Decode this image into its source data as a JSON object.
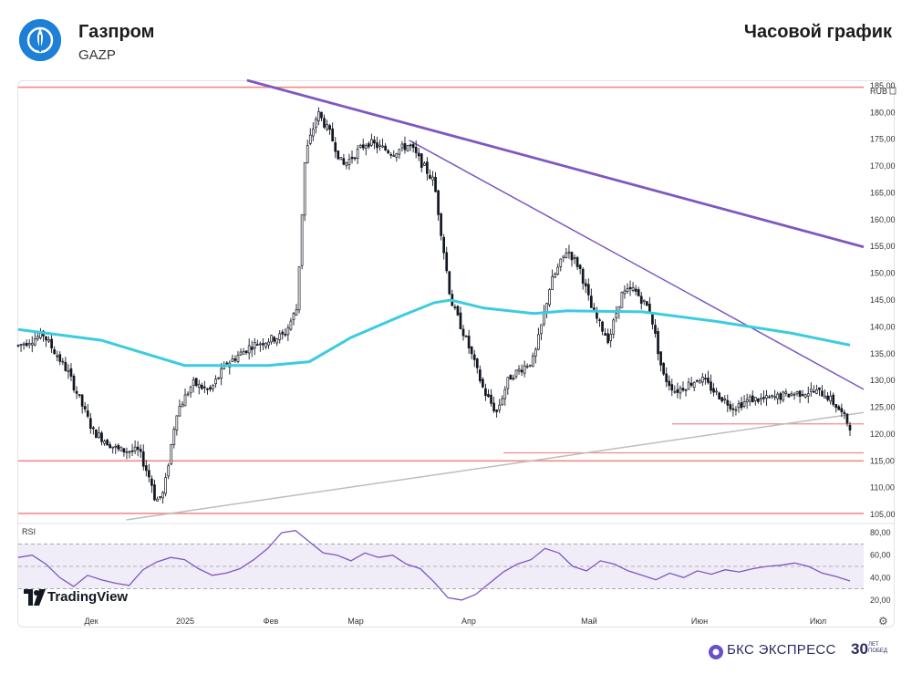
{
  "header": {
    "company": "Газпром",
    "ticker": "GAZP",
    "chart_title": "Часовой график"
  },
  "brand": {
    "name": "БКС ЭКСПРЕСС",
    "anniversary_num": "30",
    "anniversary_text": "ЛЕТ ПОБЕД"
  },
  "watermark": "TradingView",
  "colors": {
    "candle": "#131722",
    "ma_line": "#3ccbe0",
    "trend_line": "#7e57c2",
    "level_line": "#f28b8b",
    "support_line": "#bdbdbd",
    "rsi_line": "#7e57c2",
    "rsi_band": "#f0ecf8"
  },
  "chart_data": {
    "type": "candlestick",
    "currency": "RUB",
    "xlabels": [
      "Дек",
      "2025",
      "Фев",
      "Мар",
      "Апр",
      "Май",
      "Июн",
      "Июл"
    ],
    "y_ticks": [
      "185,00",
      "180,00",
      "175,00",
      "170,00",
      "165,00",
      "160,00",
      "155,00",
      "150,00",
      "145,00",
      "140,00",
      "135,00",
      "130,00",
      "125,00",
      "120,00",
      "115,00",
      "110,00",
      "105,00"
    ],
    "ylim": [
      104,
      186
    ],
    "horizontal_levels": [
      184.7,
      115.0,
      105.2,
      116.5,
      121.9
    ],
    "price_path": [
      [
        0,
        136.5
      ],
      [
        0.03,
        138.6
      ],
      [
        0.06,
        131.5
      ],
      [
        0.09,
        120.5
      ],
      [
        0.12,
        117.0
      ],
      [
        0.145,
        116.8
      ],
      [
        0.16,
        111.0
      ],
      [
        0.165,
        107.5
      ],
      [
        0.175,
        109.0
      ],
      [
        0.19,
        124.0
      ],
      [
        0.21,
        129.5
      ],
      [
        0.23,
        128.0
      ],
      [
        0.25,
        133.0
      ],
      [
        0.28,
        136.5
      ],
      [
        0.32,
        138.5
      ],
      [
        0.335,
        143.5
      ],
      [
        0.34,
        158.0
      ],
      [
        0.345,
        172.0
      ],
      [
        0.36,
        180.0
      ],
      [
        0.375,
        176.0
      ],
      [
        0.39,
        170.0
      ],
      [
        0.42,
        174.5
      ],
      [
        0.45,
        172.5
      ],
      [
        0.47,
        174.0
      ],
      [
        0.5,
        167.0
      ],
      [
        0.52,
        145.0
      ],
      [
        0.54,
        137.0
      ],
      [
        0.56,
        128.0
      ],
      [
        0.575,
        124.0
      ],
      [
        0.59,
        130.5
      ],
      [
        0.62,
        134.0
      ],
      [
        0.64,
        148.0
      ],
      [
        0.66,
        154.5
      ],
      [
        0.675,
        151.0
      ],
      [
        0.69,
        143.0
      ],
      [
        0.71,
        137.5
      ],
      [
        0.725,
        146.0
      ],
      [
        0.74,
        147.0
      ],
      [
        0.76,
        143.0
      ],
      [
        0.775,
        131.0
      ],
      [
        0.79,
        128.0
      ],
      [
        0.82,
        130.5
      ],
      [
        0.84,
        127.5
      ],
      [
        0.86,
        125.0
      ],
      [
        0.88,
        126.5
      ],
      [
        0.9,
        126.5
      ],
      [
        0.93,
        127.5
      ],
      [
        0.955,
        128.0
      ],
      [
        0.97,
        127.5
      ],
      [
        0.985,
        125.0
      ],
      [
        1.0,
        121.5
      ]
    ],
    "moving_average": [
      [
        0,
        139.5
      ],
      [
        0.1,
        137.5
      ],
      [
        0.2,
        132.8
      ],
      [
        0.3,
        132.8
      ],
      [
        0.35,
        133.5
      ],
      [
        0.4,
        138.0
      ],
      [
        0.46,
        142.0
      ],
      [
        0.5,
        144.5
      ],
      [
        0.52,
        145.0
      ],
      [
        0.56,
        143.5
      ],
      [
        0.62,
        142.5
      ],
      [
        0.66,
        143.0
      ],
      [
        0.75,
        142.8
      ],
      [
        0.84,
        141.0
      ],
      [
        0.93,
        138.8
      ],
      [
        1.0,
        136.6
      ]
    ],
    "trend_lines": [
      {
        "from": [
          0.275,
          186.0
        ],
        "to": [
          1.05,
          153.5
        ]
      },
      {
        "from": [
          0.47,
          174.8
        ],
        "to": [
          1.05,
          125.5
        ]
      },
      {
        "from": [
          0.13,
          104.0
        ],
        "to": [
          1.05,
          124.8
        ]
      }
    ],
    "rsi": {
      "label": "RSI",
      "y_ticks": [
        "80,00",
        "60,00",
        "40,00",
        "20,00"
      ],
      "ylim": [
        15,
        85
      ],
      "band": [
        30,
        70
      ],
      "values": [
        58,
        60,
        52,
        40,
        32,
        42,
        38,
        35,
        33,
        47,
        54,
        58,
        56,
        48,
        42,
        44,
        48,
        56,
        66,
        80,
        82,
        72,
        62,
        60,
        55,
        62,
        58,
        60,
        52,
        48,
        36,
        22,
        20,
        25,
        35,
        45,
        52,
        56,
        66,
        62,
        50,
        46,
        55,
        52,
        46,
        42,
        38,
        44,
        40,
        46,
        43,
        47,
        45,
        48,
        50,
        51,
        53,
        50,
        44,
        41,
        37
      ]
    }
  }
}
